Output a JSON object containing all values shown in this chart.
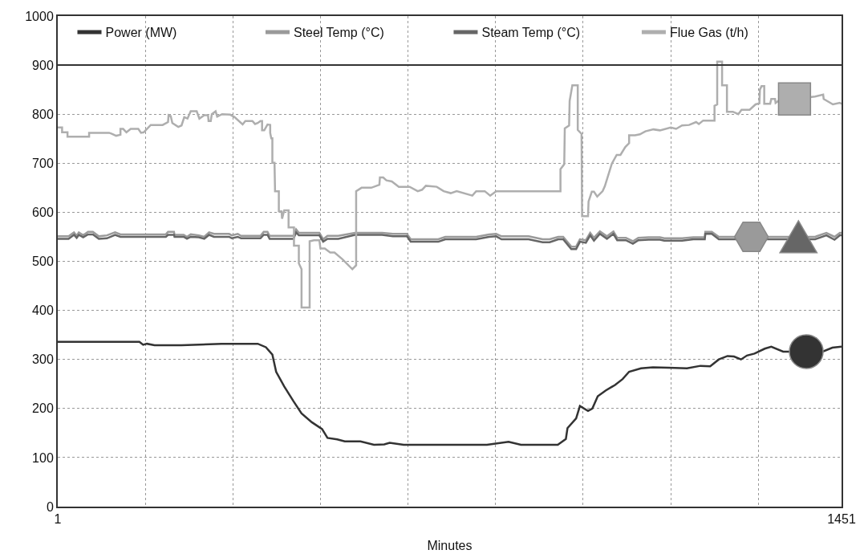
{
  "chart_data": {
    "type": "line",
    "xlabel": "Minutes",
    "xlim": [
      1,
      1451
    ],
    "xticks": [
      1,
      {
        "value": 163,
        "label": null
      },
      {
        "value": 325,
        "label": null
      },
      {
        "value": 487,
        "label": null
      },
      {
        "value": 649,
        "label": null
      },
      {
        "value": 811,
        "label": null
      },
      {
        "value": 973,
        "label": null
      },
      {
        "value": 1135,
        "label": null
      },
      {
        "value": 1297,
        "label": null
      },
      1451
    ],
    "ylim": [
      0,
      1000
    ],
    "yticks": [
      0,
      100,
      200,
      300,
      400,
      500,
      600,
      700,
      800,
      900,
      1000
    ],
    "grid": true,
    "legend": "top",
    "line_style": "solid",
    "ref_lines": [
      {
        "axis": "y",
        "value": 900,
        "color": "#333333"
      }
    ],
    "series": [
      {
        "name": "Power (MW)",
        "color": "#333333",
        "x": [
          1,
          152,
          159,
          166,
          180,
          230,
          304,
          371,
          386,
          398,
          405,
          420,
          437,
          452,
          471,
          490,
          500,
          518,
          532,
          561,
          586,
          605,
          615,
          641,
          795,
          835,
          858,
          926,
          941,
          944,
          960,
          967,
          982,
          990,
          1000,
          1015,
          1032,
          1046,
          1058,
          1080,
          1102,
          1131,
          1165,
          1190,
          1208,
          1224,
          1240,
          1252,
          1265,
          1276,
          1290,
          1309,
          1321,
          1343,
          1416,
          1434,
          1451
        ],
        "values": [
          336,
          336,
          330,
          332,
          329,
          329,
          332,
          332,
          325,
          310,
          275,
          245,
          215,
          190,
          172,
          158,
          140,
          137,
          133,
          133,
          126,
          127,
          130,
          126,
          126,
          132,
          126,
          126,
          138,
          160,
          180,
          205,
          195,
          200,
          225,
          237,
          248,
          260,
          275,
          282,
          284,
          283,
          282,
          287,
          286,
          300,
          307,
          306,
          300,
          308,
          312,
          322,
          326,
          316,
          316,
          324,
          326
        ]
      },
      {
        "name": "Steel Temp (°C)",
        "color": "#9a9a9a",
        "x": [
          1,
          21,
          31,
          36,
          40,
          48,
          57,
          66,
          77,
          92,
          107,
          117,
          201,
          205,
          216,
          217,
          234,
          240,
          247,
          262,
          272,
          281,
          290,
          318,
          323,
          334,
          340,
          376,
          382,
          389,
          393,
          437,
          442,
          447,
          485,
          492,
          500,
          520,
          551,
          571,
          601,
          621,
          647,
          654,
          705,
          718,
          775,
          799,
          812,
          822,
          872,
          898,
          911,
          927,
          936,
          951,
          960,
          967,
          978,
          986,
          993,
          1004,
          1017,
          1029,
          1036,
          1052,
          1065,
          1075,
          1094,
          1115,
          1123,
          1156,
          1177,
          1198,
          1199,
          1211,
          1224,
          1402,
          1423,
          1438,
          1448,
          1451
        ],
        "values": [
          551,
          551,
          559,
          552,
          559,
          553,
          560,
          560,
          551,
          553,
          559,
          555,
          555,
          560,
          560,
          554,
          554,
          550,
          555,
          553,
          550,
          559,
          556,
          556,
          553,
          556,
          552,
          552,
          560,
          560,
          552,
          552,
          565,
          558,
          558,
          545,
          552,
          552,
          558,
          558,
          558,
          556,
          556,
          545,
          545,
          550,
          550,
          555,
          556,
          551,
          551,
          545,
          545,
          550,
          550,
          530,
          530,
          545,
          543,
          558,
          548,
          561,
          551,
          561,
          548,
          548,
          541,
          548,
          549,
          549,
          547,
          547,
          549,
          549,
          560,
          560,
          550,
          550,
          558,
          550,
          558,
          558
        ]
      },
      {
        "name": "Steam Temp (°C)",
        "color": "#666666",
        "x": [
          1,
          21,
          31,
          36,
          40,
          48,
          57,
          66,
          77,
          92,
          107,
          117,
          201,
          205,
          216,
          217,
          234,
          240,
          247,
          262,
          272,
          281,
          290,
          318,
          323,
          334,
          340,
          376,
          382,
          389,
          393,
          437,
          442,
          447,
          485,
          492,
          500,
          520,
          551,
          571,
          601,
          621,
          647,
          654,
          705,
          718,
          775,
          799,
          812,
          822,
          872,
          898,
          911,
          927,
          936,
          951,
          960,
          967,
          978,
          986,
          993,
          1004,
          1017,
          1029,
          1036,
          1052,
          1065,
          1075,
          1094,
          1115,
          1123,
          1156,
          1177,
          1198,
          1199,
          1211,
          1224,
          1402,
          1423,
          1438,
          1448,
          1451
        ],
        "values": [
          546,
          546,
          554,
          548,
          554,
          549,
          555,
          555,
          546,
          547,
          554,
          550,
          550,
          554,
          554,
          550,
          550,
          546,
          550,
          549,
          546,
          554,
          550,
          550,
          547,
          550,
          547,
          547,
          554,
          554,
          546,
          546,
          559,
          553,
          553,
          540,
          546,
          546,
          554,
          554,
          554,
          551,
          551,
          540,
          540,
          545,
          545,
          550,
          551,
          545,
          545,
          539,
          539,
          545,
          545,
          525,
          525,
          540,
          538,
          553,
          542,
          556,
          546,
          556,
          543,
          543,
          536,
          543,
          544,
          544,
          542,
          542,
          545,
          545,
          556,
          556,
          545,
          545,
          553,
          544,
          553,
          553
        ]
      },
      {
        "name": "Flue Gas (t/h)",
        "color": "#aeaeae",
        "x": [
          1,
          9,
          9,
          19,
          19,
          35,
          59,
          59,
          95,
          96,
          101,
          109,
          117,
          117,
          122,
          128,
          136,
          150,
          155,
          160,
          173,
          195,
          205,
          206,
          210,
          213,
          224,
          230,
          235,
          241,
          247,
          258,
          263,
          272,
          279,
          280,
          284,
          286,
          293,
          296,
          305,
          320,
          328,
          343,
          348,
          361,
          366,
          371,
          376,
          379,
          379,
          383,
          389,
          394,
          394,
          396,
          398,
          398,
          402,
          403,
          410,
          410,
          415,
          416,
          420,
          428,
          428,
          438,
          438,
          447,
          447,
          452,
          452,
          467,
          467,
          475,
          485,
          487,
          495,
          505,
          513,
          528,
          546,
          553,
          553,
          563,
          581,
          596,
          597,
          603,
          609,
          619,
          632,
          652,
          667,
          675,
          682,
          702,
          715,
          728,
          739,
          768,
          775,
          791,
          801,
          812,
          931,
          931,
          938,
          939,
          947,
          948,
          953,
          963,
          963,
          970,
          971,
          982,
          983,
          989,
          993,
          999,
          1009,
          1013,
          1013,
          1026,
          1035,
          1042,
          1051,
          1058,
          1058,
          1069,
          1078,
          1088,
          1103,
          1115,
          1135,
          1145,
          1156,
          1169,
          1182,
          1187,
          1195,
          1216,
          1216,
          1221,
          1221,
          1230,
          1230,
          1239,
          1239,
          1250,
          1260,
          1266,
          1281,
          1292,
          1299,
          1300,
          1303,
          1308,
          1308,
          1319,
          1321,
          1328,
          1329,
          1334,
          1402,
          1417,
          1418,
          1435,
          1448,
          1451
        ],
        "values": [
          773,
          773,
          763,
          763,
          754,
          754,
          754,
          762,
          762,
          762,
          760,
          756,
          758,
          770,
          770,
          763,
          770,
          770,
          762,
          763,
          778,
          778,
          784,
          798,
          796,
          782,
          774,
          777,
          794,
          791,
          806,
          806,
          791,
          798,
          798,
          786,
          786,
          800,
          806,
          795,
          800,
          799,
          794,
          779,
          786,
          786,
          780,
          782,
          786,
          786,
          767,
          767,
          779,
          778,
          762,
          751,
          751,
          701,
          701,
          643,
          643,
          602,
          602,
          587,
          604,
          604,
          569,
          569,
          532,
          532,
          496,
          484,
          406,
          406,
          541,
          543,
          543,
          526,
          526,
          518,
          518,
          504,
          484,
          492,
          643,
          650,
          650,
          656,
          671,
          671,
          665,
          663,
          652,
          652,
          643,
          646,
          654,
          652,
          643,
          639,
          643,
          634,
          643,
          643,
          634,
          643,
          643,
          688,
          698,
          771,
          777,
          827,
          859,
          859,
          768,
          760,
          592,
          592,
          622,
          642,
          642,
          632,
          643,
          653,
          653,
          699,
          717,
          717,
          733,
          741,
          757,
          757,
          759,
          765,
          769,
          767,
          773,
          770,
          777,
          778,
          784,
          780,
          787,
          787,
          817,
          820,
          907,
          907,
          859,
          859,
          805,
          805,
          800,
          809,
          809,
          820,
          822,
          850,
          857,
          857,
          821,
          821,
          831,
          831,
          823,
          827,
          836,
          840,
          831,
          820,
          823,
          821
        ]
      }
    ]
  }
}
